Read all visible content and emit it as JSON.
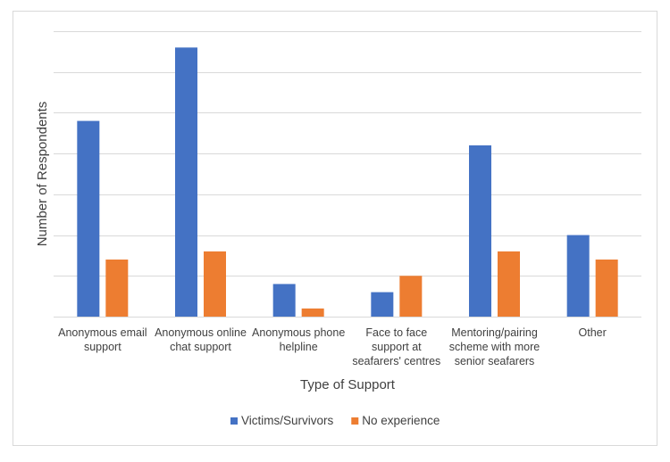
{
  "chart_data": {
    "type": "bar",
    "title": "",
    "xlabel": "Type of Support",
    "ylabel": "Number of Respondents",
    "ylim": [
      0,
      14
    ],
    "grid": true,
    "y_tick_labels_shown": false,
    "legend_position": "bottom",
    "categories": [
      [
        "Anonymous email",
        "support"
      ],
      [
        "Anonymous online",
        "chat support"
      ],
      [
        "Anonymous phone",
        "helpline"
      ],
      [
        "Face to face",
        "support at",
        "seafarers' centres"
      ],
      [
        "Mentoring/pairing",
        "scheme with more",
        "senior seafarers"
      ],
      [
        "Other"
      ]
    ],
    "series": [
      {
        "name": "Victims/Survivors",
        "color": "#4472C4",
        "values": [
          9.6,
          13.2,
          1.6,
          1.2,
          8.4,
          4.0
        ]
      },
      {
        "name": "No experience",
        "color": "#ED7D31",
        "values": [
          2.8,
          3.2,
          0.4,
          2.0,
          3.2,
          2.8
        ]
      }
    ]
  }
}
